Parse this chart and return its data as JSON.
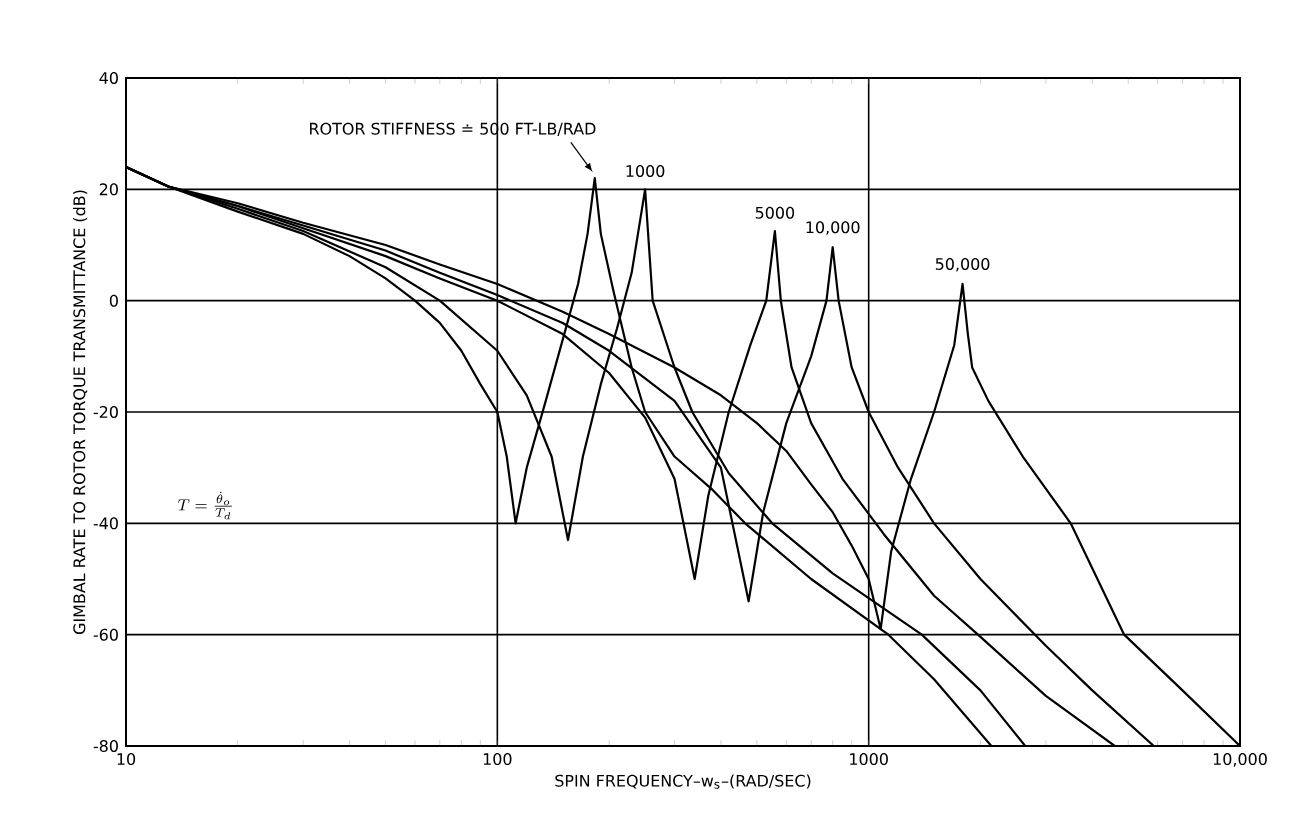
{
  "chart_data": {
    "type": "line",
    "xlabel": "SPIN FREQUENCY–w$_{s}$–(RAD/SEC)",
    "ylabel": "GIMBAL RATE TO ROTOR TORQUE TRANSMITTANCE (dB)",
    "log": "x",
    "grid": true,
    "marker": "none",
    "line_style": "solid",
    "xlim": [
      10,
      10000
    ],
    "ylim": [
      -80,
      40
    ],
    "xticks": [
      10,
      100,
      {
        "value": 1000,
        "label": "1000"
      },
      {
        "value": 10000,
        "label": "10,000"
      }
    ],
    "yticks": [
      -80,
      -60,
      -40,
      -20,
      0,
      20,
      40
    ],
    "annotations": [
      "T = \\frac{\\dot{\\theta}_o}{T_d}"
    ],
    "series": [
      {
        "name": "ROTOR STIFFNESS ≐ 500 FT-LB/RAD",
        "color": "#000000",
        "x": [
          10,
          13,
          20,
          30,
          40,
          50,
          60,
          70,
          80,
          90,
          100,
          106,
          112,
          120,
          135,
          150,
          165,
          175,
          183,
          190,
          205,
          230,
          250,
          300,
          380,
          465,
          700,
          1130,
          1500,
          2140
        ],
        "values": [
          24,
          20.5,
          16,
          12,
          8,
          4,
          0,
          -4,
          -9,
          -15,
          -20,
          -28,
          -40,
          -30,
          -18,
          -7,
          3,
          12,
          22,
          12,
          2,
          -12,
          -20,
          -28,
          -34,
          -40,
          -50,
          -60,
          -68,
          -80
        ]
      },
      {
        "name": "1000",
        "color": "#000000",
        "x": [
          10,
          13,
          20,
          30,
          50,
          70,
          100,
          120,
          140,
          155,
          170,
          190,
          210,
          230,
          250,
          262,
          300,
          335,
          420,
          550,
          800,
          1390,
          2000,
          2640
        ],
        "values": [
          24,
          20.5,
          16.5,
          12.5,
          6,
          0,
          -9,
          -17,
          -28,
          -43,
          -28,
          -15,
          -5,
          5,
          20,
          0,
          -12,
          -20,
          -31,
          -40,
          -49,
          -60,
          -70,
          -80
        ]
      },
      {
        "name": "5000",
        "color": "#000000",
        "x": [
          10,
          13,
          20,
          30,
          50,
          70,
          100,
          150,
          200,
          250,
          300,
          340,
          370,
          420,
          480,
          530,
          559,
          580,
          620,
          700,
          850,
          1100,
          1500,
          1970,
          3000,
          4600
        ],
        "values": [
          24,
          20.5,
          17,
          13,
          8,
          4,
          0,
          -6,
          -13,
          -21,
          -32,
          -50,
          -35,
          -20,
          -8,
          0,
          12.5,
          0,
          -12,
          -22,
          -32,
          -42,
          -53,
          -60,
          -71,
          -80
        ]
      },
      {
        "name": "10,000",
        "color": "#000000",
        "x": [
          10,
          13,
          20,
          30,
          50,
          70,
          100,
          150,
          200,
          300,
          400,
          475,
          520,
          600,
          700,
          770,
          800,
          830,
          900,
          1000,
          1200,
          1500,
          2000,
          3000,
          4000,
          5860
        ],
        "values": [
          24,
          20.5,
          17,
          13.5,
          9,
          5,
          1,
          -4,
          -9,
          -18,
          -30,
          -54,
          -38,
          -22,
          -10,
          0,
          9.6,
          0,
          -12,
          -20,
          -30,
          -40,
          -50,
          -62,
          -70,
          -80
        ]
      },
      {
        "name": "50,000",
        "color": "#000000",
        "x": [
          10,
          13,
          20,
          30,
          50,
          70,
          100,
          150,
          200,
          300,
          400,
          500,
          600,
          700,
          800,
          900,
          1000,
          1077,
          1150,
          1300,
          1500,
          1700,
          1790,
          1850,
          1900,
          2100,
          2600,
          3500,
          4875,
          7000,
          10000
        ],
        "values": [
          24,
          20.5,
          17.5,
          14,
          10,
          6.5,
          3,
          -2,
          -6,
          -12,
          -17,
          -22,
          -27,
          -33,
          -38,
          -44,
          -50,
          -59,
          -45,
          -32,
          -20,
          -8,
          3,
          -6,
          -12,
          -18,
          -28,
          -40,
          -60,
          -70,
          -80
        ]
      }
    ]
  }
}
